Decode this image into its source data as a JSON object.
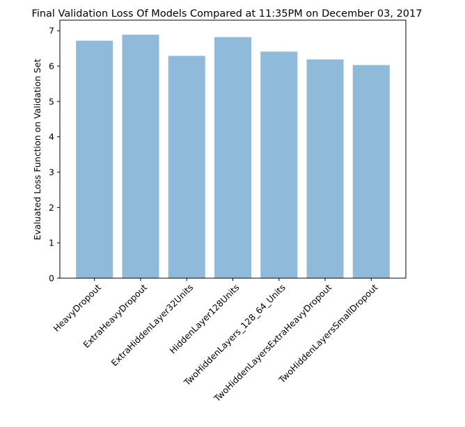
{
  "chart_data": {
    "type": "bar",
    "title": "Final Validation Loss Of Models Compared at 11:35PM on December 03, 2017",
    "xlabel": "",
    "ylabel": "Evaluated Loss Function on Validation Set",
    "categories": [
      "HeavyDropout",
      "ExtraHeavyDropout",
      "ExtraHiddenLayer32Units",
      "HiddenLayer128Units",
      "TwoHiddenLayers_128_64_Units",
      "TwoHiddenLayersExtraHeavyDropout",
      "TwoHiddenLayersSmallDropout"
    ],
    "values": [
      6.72,
      6.89,
      6.29,
      6.82,
      6.41,
      6.19,
      6.03
    ],
    "ylim": [
      0,
      7.3
    ],
    "yticks": [
      "0",
      "1",
      "2",
      "3",
      "4",
      "5",
      "6",
      "7"
    ],
    "bar_color": "#8fbad9",
    "grid": false,
    "legend": "none"
  }
}
